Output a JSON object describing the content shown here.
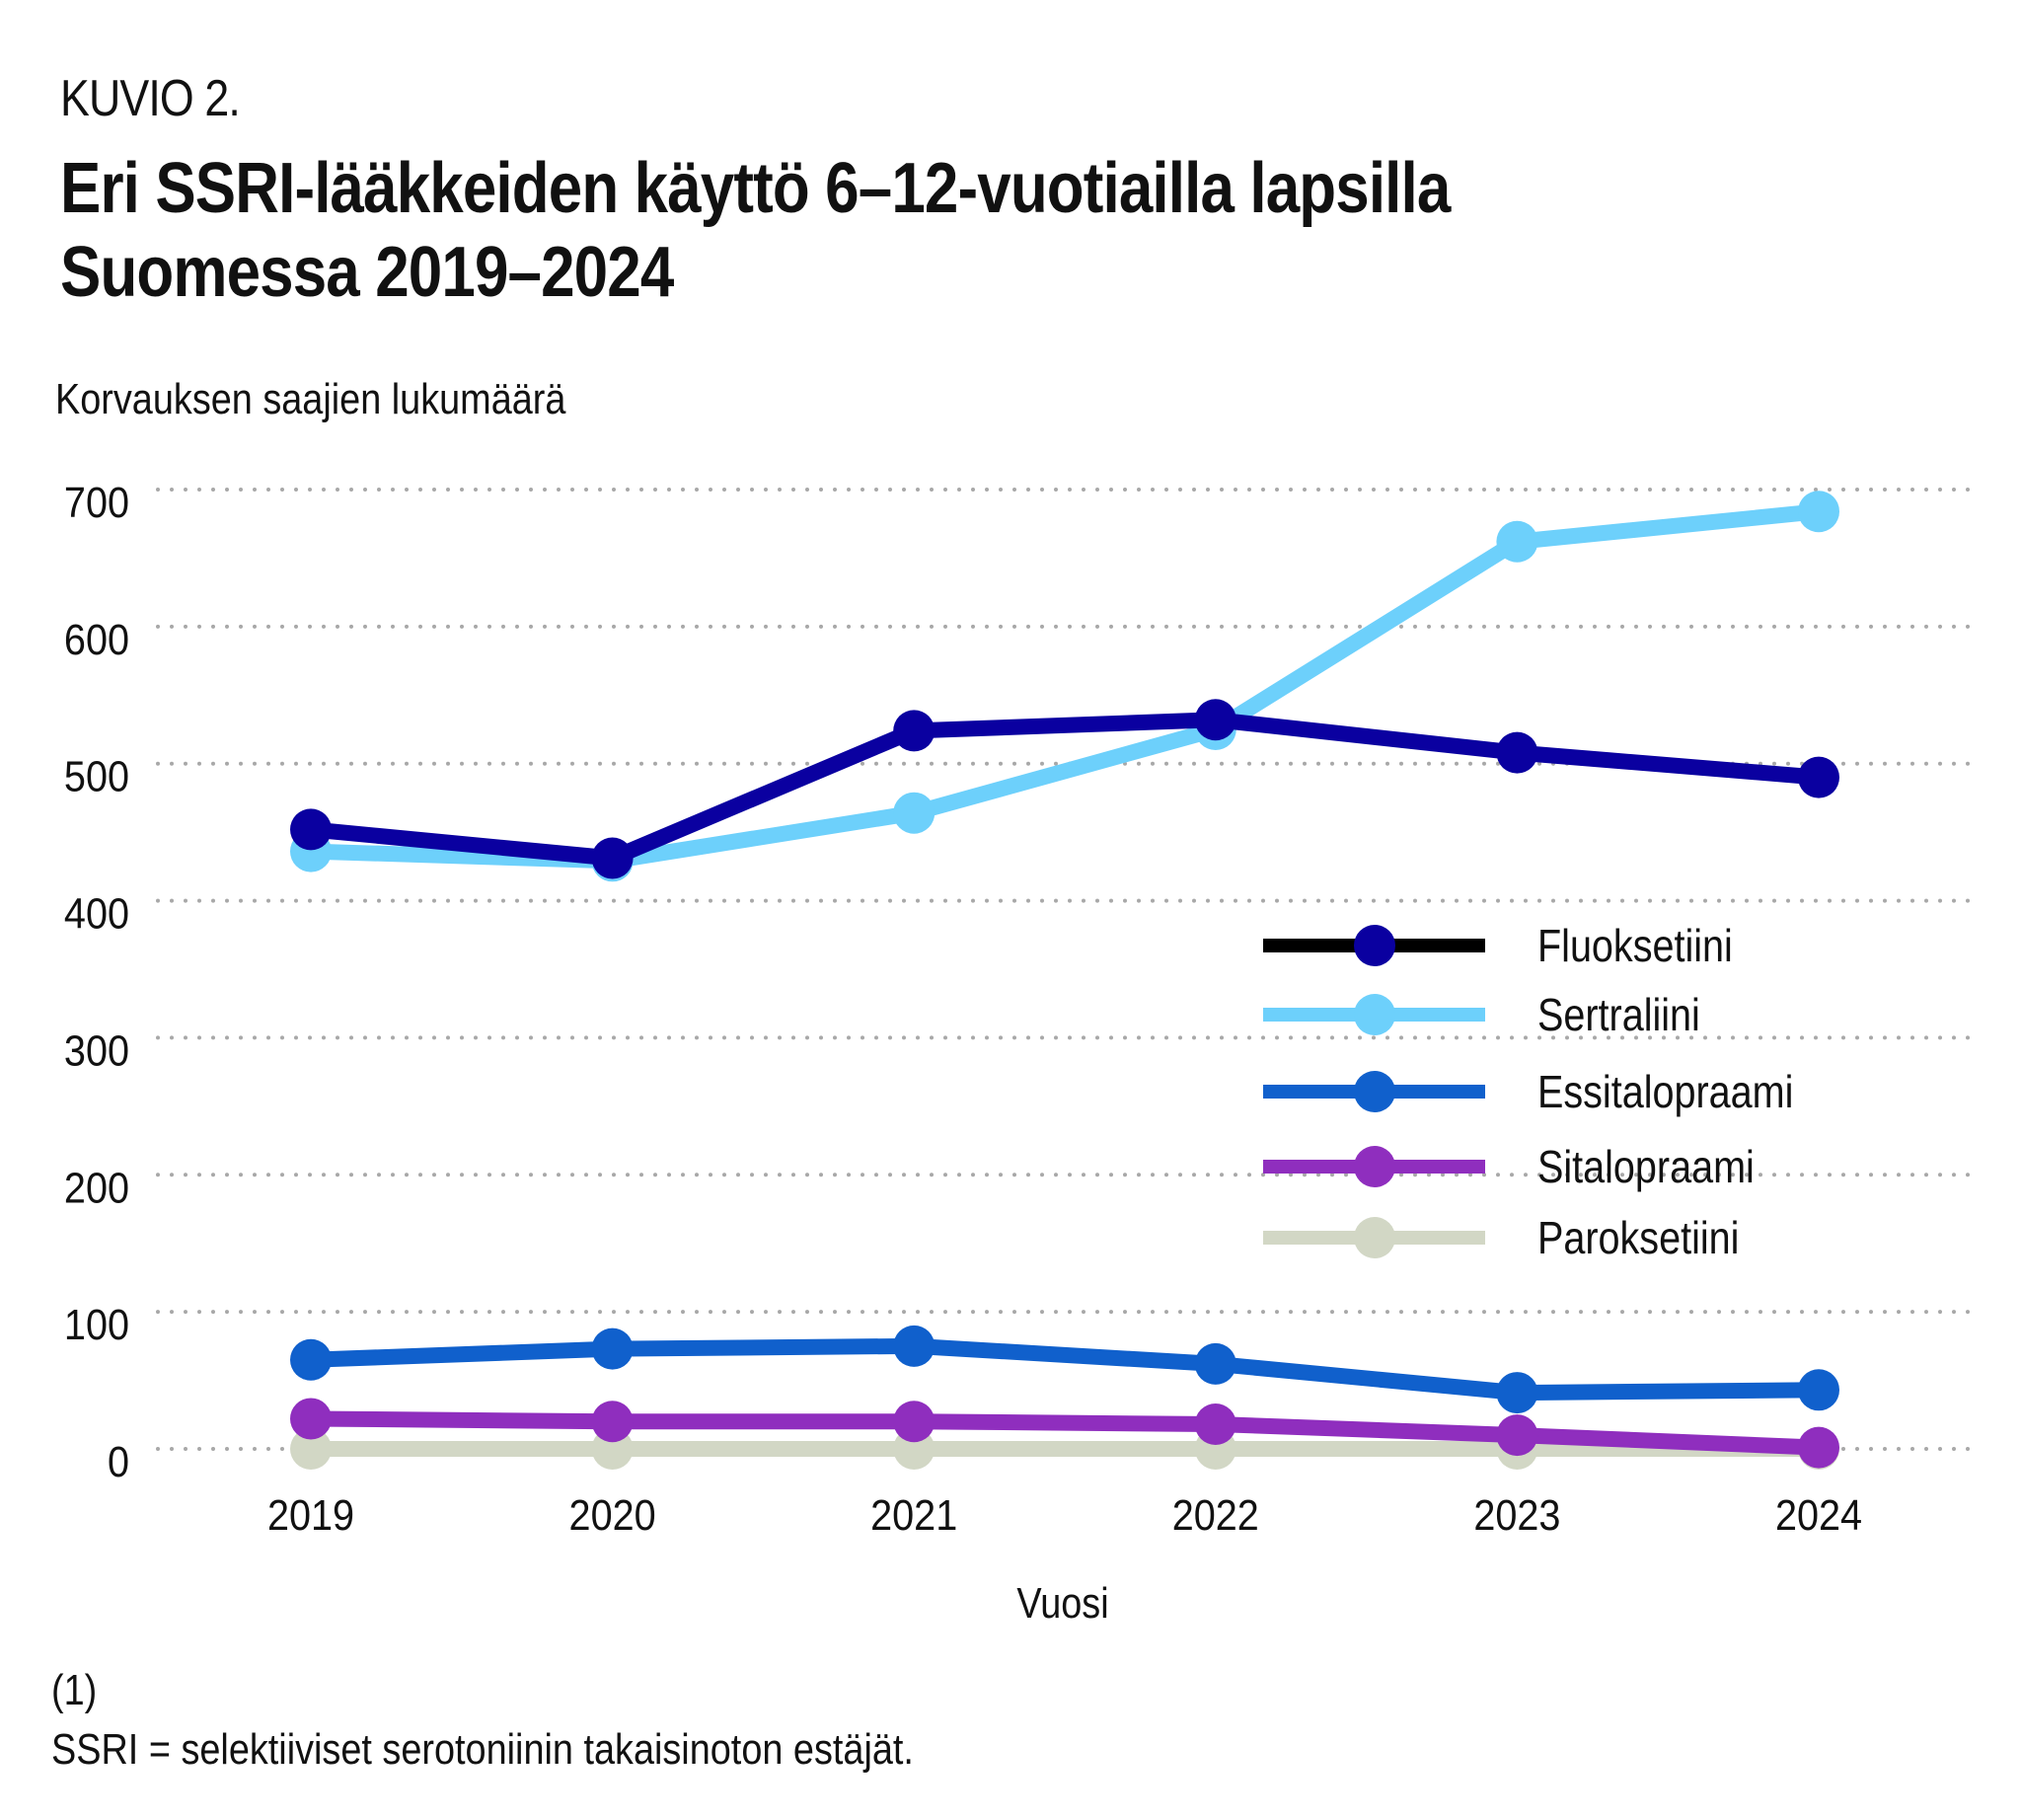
{
  "figure_label": "KUVIO 2.",
  "title_line1": "Eri SSRI-lääkkeiden käyttö 6–12-vuotiailla lapsilla",
  "title_line2": "Suomessa 2019–2024",
  "footnote_marker": "(1)",
  "footnote_text": "SSRI = selektiiviset serotoniinin takaisinoton estäjät.",
  "chart_data": {
    "type": "line",
    "title": "Eri SSRI-lääkkeiden käyttö 6–12-vuotiailla lapsilla Suomessa 2019–2024",
    "xlabel": "Vuosi",
    "ylabel": "Korvauksen saajien lukumäärä",
    "x": [
      "2019",
      "2020",
      "2021",
      "2022",
      "2023",
      "2024"
    ],
    "ylim": [
      0,
      700
    ],
    "yticks": [
      "0",
      "100",
      "200",
      "300",
      "400",
      "500",
      "600",
      "700"
    ],
    "grid": "horizontal-dotted",
    "legend_position": "right",
    "series": [
      {
        "name": "Fluoksetiini",
        "color": "#0a00a0",
        "legend_line_color": "#000000",
        "values": [
          452,
          431,
          524,
          532,
          508,
          490
        ]
      },
      {
        "name": "Sertraliini",
        "color": "#6dd0fb",
        "legend_line_color": "#6dd0fb",
        "values": [
          436,
          429,
          464,
          525,
          662,
          684
        ]
      },
      {
        "name": "Essitalopraami",
        "color": "#1060cc",
        "legend_line_color": "#1060cc",
        "values": [
          65,
          73,
          75,
          62,
          41,
          43
        ]
      },
      {
        "name": "Sitalopraami",
        "color": "#8f2ebe",
        "legend_line_color": "#8f2ebe",
        "values": [
          22,
          20,
          20,
          18,
          10,
          1
        ]
      },
      {
        "name": "Paroksetiini",
        "color": "#d2d7c5",
        "legend_line_color": "#d2d7c5",
        "values": [
          0,
          0,
          0,
          0,
          0,
          0
        ]
      }
    ]
  }
}
